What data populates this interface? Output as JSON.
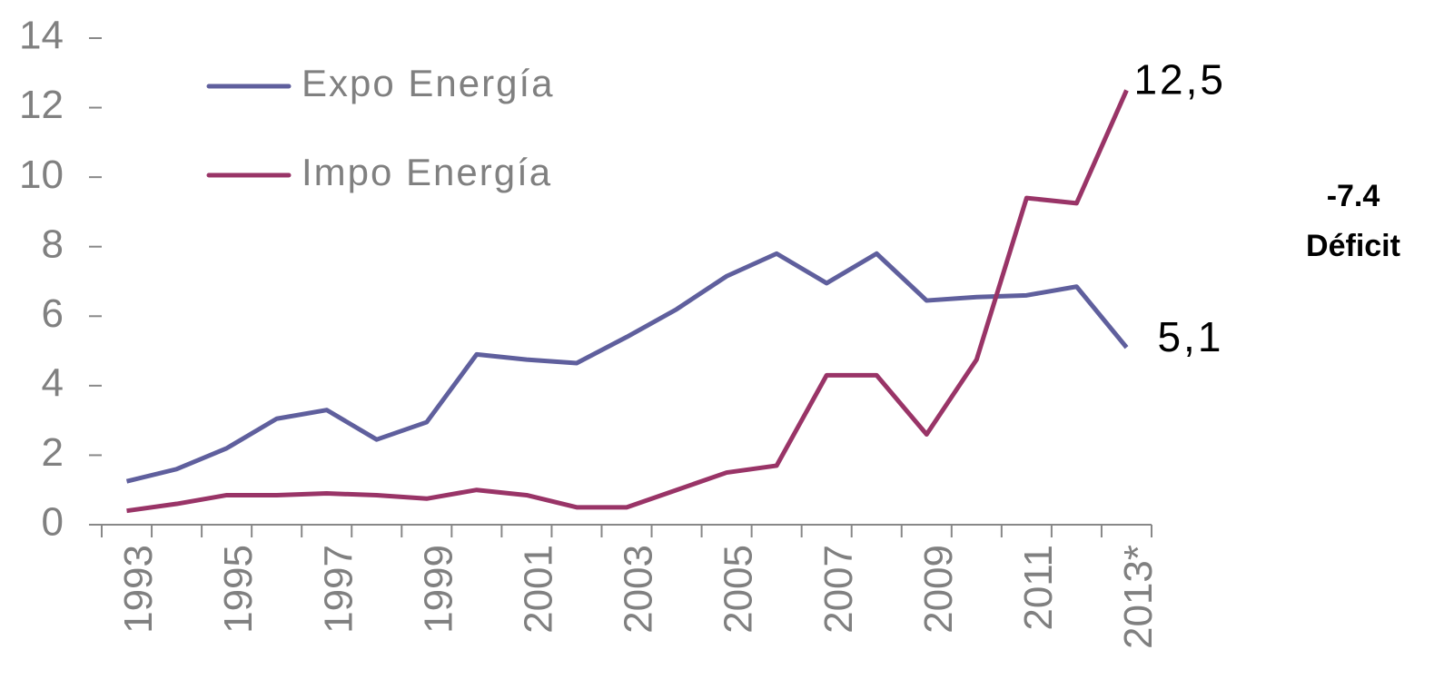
{
  "chart_data": {
    "type": "line",
    "categories": [
      "1993",
      null,
      "1995",
      null,
      "1997",
      null,
      "1999",
      null,
      "2001",
      null,
      "2003",
      null,
      "2005",
      null,
      "2007",
      null,
      "2009",
      null,
      "2011",
      null,
      "2013*"
    ],
    "series": [
      {
        "name": "Expo Energía",
        "color": "#5f5f9d",
        "values": [
          1.25,
          1.6,
          2.2,
          3.05,
          3.3,
          2.45,
          2.95,
          4.9,
          4.75,
          4.65,
          5.4,
          6.2,
          7.15,
          7.8,
          6.95,
          7.8,
          6.45,
          6.55,
          6.6,
          6.85,
          5.1
        ],
        "value_labels": [
          null,
          null,
          null,
          null,
          null,
          null,
          null,
          null,
          null,
          null,
          null,
          null,
          null,
          null,
          null,
          null,
          null,
          null,
          null,
          null,
          "5,1"
        ]
      },
      {
        "name": "Impo Energía",
        "color": "#993467",
        "values": [
          0.4,
          0.6,
          0.85,
          0.85,
          0.9,
          0.85,
          0.75,
          1.0,
          0.85,
          0.5,
          0.5,
          1.0,
          1.5,
          1.7,
          4.3,
          4.3,
          2.6,
          4.75,
          9.4,
          9.25,
          12.5
        ],
        "value_labels": [
          null,
          null,
          null,
          null,
          null,
          null,
          null,
          null,
          null,
          null,
          null,
          null,
          null,
          null,
          null,
          null,
          null,
          null,
          null,
          null,
          "12,5"
        ]
      }
    ],
    "annotations": [
      "-7.4",
      "Déficit"
    ],
    "ylim": [
      0,
      14
    ],
    "yticks": [
      0,
      2,
      4,
      6,
      8,
      10,
      12,
      14
    ],
    "grid": false,
    "legend": "top-left"
  }
}
